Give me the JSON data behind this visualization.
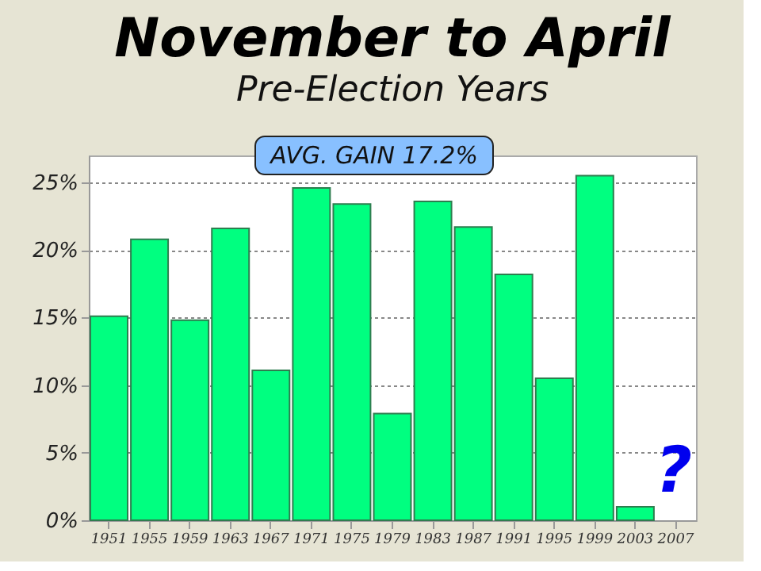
{
  "chart_data": {
    "type": "bar",
    "title": "November to April",
    "subtitle": "Pre-Election Years",
    "categories": [
      "1951",
      "1955",
      "1959",
      "1963",
      "1967",
      "1971",
      "1975",
      "1979",
      "1983",
      "1987",
      "1991",
      "1995",
      "1999",
      "2003",
      "2007"
    ],
    "values": [
      15.1,
      20.8,
      14.8,
      21.6,
      11.1,
      24.6,
      23.4,
      7.9,
      23.6,
      21.7,
      18.2,
      10.5,
      25.5,
      1.0,
      null
    ],
    "color": "#00ff80",
    "ylim": [
      0,
      27
    ],
    "yticks": [
      {
        "value": 0,
        "label": "0%"
      },
      {
        "value": 5,
        "label": "5%"
      },
      {
        "value": 10,
        "label": "10%"
      },
      {
        "value": 15,
        "label": "15%"
      },
      {
        "value": 20,
        "label": "20%"
      },
      {
        "value": 25,
        "label": "25%"
      }
    ],
    "grid": "y",
    "annotations": [
      "AVG. GAIN 17.2%",
      "?"
    ]
  }
}
